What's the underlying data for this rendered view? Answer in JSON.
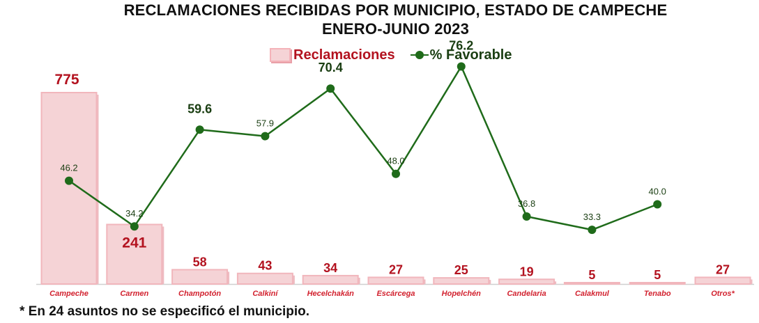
{
  "title_line1": "RECLAMACIONES RECIBIDAS POR MUNICIPIO, ESTADO DE CAMPECHE",
  "title_line2": "ENERO-JUNIO 2023",
  "footnote": "* En 24 asuntos no se especificó el municipio.",
  "colors": {
    "bar_fill": "#f5d3d6",
    "bar_edge": "#f1b6bc",
    "bar_label": "#b3121f",
    "line": "#1f6b1a",
    "line_label": "#1a3e12",
    "tick_label": "#d2222f"
  },
  "chart_data": {
    "type": "bar",
    "title": "RECLAMACIONES RECIBIDAS POR MUNICIPIO, ESTADO DE CAMPECHE ENERO-JUNIO 2023",
    "categories": [
      "Campeche",
      "Carmen",
      "Champotón",
      "Calkiní",
      "Hecelchakán",
      "Escárcega",
      "Hopelchén",
      "Candelaria",
      "Calakmul",
      "Tenabo",
      "Otros*"
    ],
    "series": [
      {
        "name": "Reclamaciones",
        "type": "bar",
        "values": [
          775,
          241,
          58,
          43,
          34,
          27,
          25,
          19,
          5,
          5,
          27
        ],
        "labels": [
          "775",
          "241",
          "58",
          "43",
          "34",
          "27",
          "25",
          "19",
          "5",
          "5",
          "27"
        ]
      },
      {
        "name": "% Favorable",
        "type": "line",
        "values": [
          46.2,
          34.2,
          59.6,
          57.9,
          70.4,
          48.0,
          76.2,
          36.8,
          33.3,
          40.0,
          null
        ],
        "labels": [
          "46.2",
          "34.2",
          "59.6",
          "57.9",
          "70.4",
          "48.0",
          "76.2",
          "36.8",
          "33.3",
          "40.0",
          null
        ],
        "highlighted": [
          false,
          false,
          true,
          false,
          true,
          false,
          true,
          false,
          false,
          false,
          false
        ]
      }
    ],
    "legend": "top-center",
    "grid": false
  }
}
